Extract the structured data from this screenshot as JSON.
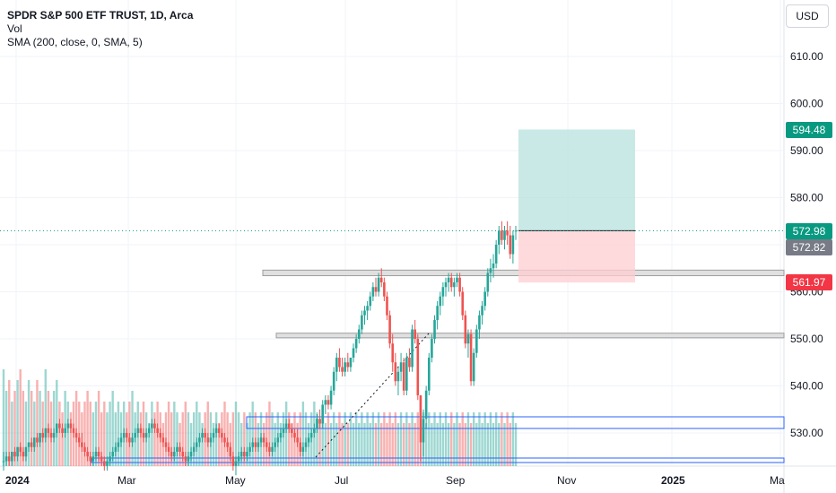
{
  "header": {
    "symbol": "SPDR S&P 500 ETF TRUST, 1D, Arca",
    "indicator_vol": "Vol",
    "indicator_sma": "SMA (200, close, 0, SMA, 5)"
  },
  "currency_button": "USD",
  "price_labels": {
    "target": "594.48",
    "last": "572.98",
    "prev_close": "572.82",
    "stop": "561.97"
  },
  "colors": {
    "up": "#26a69a",
    "down": "#ef5350",
    "target_zone": "#b2dfdb",
    "stop_zone": "#ffcdd2",
    "box_blue": "#2962ff",
    "zone_grey": "#e0e0e0",
    "last_price": "#089981",
    "prev_close_badge": "#787b86"
  },
  "chart_data": {
    "type": "candlestick",
    "ylim": [
      524,
      620
    ],
    "y_ticks": [
      "610.00",
      "600.00",
      "590.00",
      "580.00",
      "570.00",
      "560.00",
      "550.00",
      "540.00",
      "530.00"
    ],
    "x_ticks": [
      "2024",
      "Mar",
      "May",
      "Jul",
      "Sep",
      "Nov",
      "2025",
      "Ma"
    ],
    "candles_ohlc_daily_from_2024": [
      [
        524,
        526,
        522,
        524
      ],
      [
        524,
        526,
        523,
        525
      ],
      [
        525,
        526,
        523,
        524
      ],
      [
        524,
        526,
        523,
        526
      ],
      [
        526,
        527,
        524,
        525
      ],
      [
        525,
        527,
        524,
        527
      ],
      [
        527,
        528,
        525,
        526
      ],
      [
        526,
        527,
        524,
        525
      ],
      [
        525,
        527,
        524,
        527
      ],
      [
        527,
        528,
        526,
        528
      ],
      [
        528,
        529,
        526,
        527
      ],
      [
        527,
        529,
        526,
        529
      ],
      [
        529,
        530,
        527,
        528
      ],
      [
        528,
        530,
        527,
        530
      ],
      [
        530,
        531,
        528,
        529
      ],
      [
        529,
        531,
        528,
        531
      ],
      [
        531,
        532,
        529,
        530
      ],
      [
        530,
        531,
        528,
        529
      ],
      [
        529,
        531,
        528,
        530
      ],
      [
        530,
        532,
        529,
        532
      ],
      [
        532,
        533,
        530,
        531
      ],
      [
        531,
        532,
        529,
        530
      ],
      [
        530,
        532,
        529,
        531
      ],
      [
        531,
        533,
        530,
        532
      ],
      [
        532,
        533,
        530,
        531
      ],
      [
        531,
        532,
        529,
        530
      ],
      [
        530,
        531,
        528,
        529
      ],
      [
        529,
        530,
        527,
        528
      ],
      [
        528,
        530,
        526,
        527
      ],
      [
        527,
        528,
        525,
        526
      ],
      [
        526,
        527,
        524,
        525
      ],
      [
        525,
        526,
        523,
        524
      ],
      [
        524,
        526,
        523,
        525
      ],
      [
        525,
        527,
        524,
        526
      ],
      [
        526,
        527,
        524,
        525
      ],
      [
        525,
        526,
        523,
        524
      ],
      [
        524,
        525,
        522,
        523
      ],
      [
        523,
        525,
        522,
        524
      ],
      [
        524,
        526,
        523,
        525
      ],
      [
        525,
        527,
        524,
        526
      ],
      [
        526,
        528,
        525,
        527
      ],
      [
        527,
        529,
        526,
        528
      ],
      [
        528,
        530,
        527,
        529
      ],
      [
        529,
        531,
        528,
        530
      ],
      [
        530,
        531,
        528,
        529
      ],
      [
        529,
        530,
        527,
        528
      ],
      [
        528,
        530,
        527,
        529
      ],
      [
        529,
        531,
        528,
        530
      ],
      [
        530,
        532,
        529,
        531
      ],
      [
        531,
        532,
        529,
        530
      ],
      [
        530,
        531,
        528,
        529
      ],
      [
        529,
        531,
        528,
        530
      ],
      [
        530,
        532,
        529,
        531
      ],
      [
        531,
        533,
        530,
        532
      ],
      [
        532,
        533,
        530,
        531
      ],
      [
        531,
        532,
        529,
        530
      ],
      [
        530,
        531,
        528,
        529
      ],
      [
        529,
        530,
        527,
        528
      ],
      [
        528,
        529,
        526,
        527
      ],
      [
        527,
        528,
        525,
        526
      ],
      [
        526,
        527,
        524,
        525
      ],
      [
        525,
        527,
        524,
        526
      ],
      [
        526,
        528,
        525,
        527
      ],
      [
        527,
        528,
        525,
        526
      ],
      [
        526,
        527,
        524,
        525
      ],
      [
        525,
        526,
        523,
        524
      ],
      [
        524,
        526,
        523,
        525
      ],
      [
        525,
        527,
        524,
        526
      ],
      [
        526,
        528,
        525,
        527
      ],
      [
        527,
        529,
        526,
        528
      ],
      [
        528,
        530,
        527,
        529
      ],
      [
        529,
        531,
        528,
        530
      ],
      [
        530,
        531,
        528,
        529
      ],
      [
        529,
        530,
        527,
        528
      ],
      [
        528,
        530,
        527,
        529
      ],
      [
        529,
        531,
        528,
        530
      ],
      [
        530,
        532,
        529,
        531
      ],
      [
        531,
        532,
        529,
        530
      ],
      [
        530,
        531,
        528,
        529
      ],
      [
        529,
        530,
        527,
        528
      ],
      [
        528,
        529,
        526,
        527
      ],
      [
        527,
        528,
        524,
        525
      ],
      [
        525,
        526,
        522,
        523
      ],
      [
        523,
        525,
        521,
        524
      ],
      [
        524,
        526,
        523,
        525
      ],
      [
        525,
        527,
        524,
        526
      ],
      [
        526,
        527,
        524,
        525
      ],
      [
        525,
        527,
        524,
        526
      ],
      [
        526,
        528,
        525,
        527
      ],
      [
        527,
        529,
        526,
        528
      ],
      [
        528,
        529,
        526,
        527
      ],
      [
        527,
        529,
        526,
        528
      ],
      [
        528,
        530,
        527,
        529
      ],
      [
        529,
        530,
        527,
        528
      ],
      [
        528,
        529,
        526,
        527
      ],
      [
        527,
        528,
        525,
        526
      ],
      [
        526,
        528,
        525,
        527
      ],
      [
        527,
        529,
        526,
        528
      ],
      [
        528,
        530,
        527,
        529
      ],
      [
        529,
        531,
        528,
        530
      ],
      [
        530,
        532,
        529,
        531
      ],
      [
        531,
        533,
        530,
        532
      ],
      [
        532,
        533,
        530,
        531
      ],
      [
        531,
        532,
        529,
        530
      ],
      [
        530,
        531,
        528,
        529
      ],
      [
        529,
        531,
        527,
        528
      ],
      [
        528,
        529,
        525,
        526
      ],
      [
        526,
        528,
        525,
        527
      ],
      [
        527,
        529,
        526,
        528
      ],
      [
        528,
        530,
        527,
        529
      ],
      [
        529,
        531,
        528,
        530
      ],
      [
        530,
        532,
        529,
        531
      ],
      [
        531,
        534,
        530,
        533
      ],
      [
        533,
        535,
        531,
        532
      ],
      [
        532,
        537,
        531,
        536
      ],
      [
        536,
        538,
        534,
        537
      ],
      [
        537,
        538,
        535,
        536
      ],
      [
        536,
        540,
        535,
        539
      ],
      [
        539,
        544,
        538,
        543
      ],
      [
        543,
        547,
        541,
        546
      ],
      [
        546,
        548,
        543,
        544
      ],
      [
        544,
        546,
        542,
        543
      ],
      [
        543,
        546,
        542,
        545
      ],
      [
        545,
        547,
        543,
        544
      ],
      [
        544,
        546,
        543,
        546
      ],
      [
        546,
        549,
        545,
        548
      ],
      [
        548,
        551,
        547,
        550
      ],
      [
        550,
        553,
        549,
        552
      ],
      [
        552,
        556,
        551,
        555
      ],
      [
        555,
        557,
        553,
        556
      ],
      [
        556,
        558,
        554,
        557
      ],
      [
        557,
        560,
        556,
        559
      ],
      [
        559,
        562,
        558,
        561
      ],
      [
        561,
        563,
        559,
        560
      ],
      [
        560,
        564,
        559,
        563
      ],
      [
        563,
        565,
        561,
        562
      ],
      [
        562,
        563,
        558,
        559
      ],
      [
        559,
        560,
        554,
        555
      ],
      [
        555,
        556,
        548,
        549
      ],
      [
        549,
        551,
        543,
        545
      ],
      [
        545,
        547,
        540,
        541
      ],
      [
        541,
        544,
        538,
        543
      ],
      [
        543,
        547,
        541,
        545
      ],
      [
        545,
        546,
        538,
        539
      ],
      [
        539,
        547,
        538,
        546
      ],
      [
        546,
        548,
        543,
        544
      ],
      [
        544,
        553,
        543,
        552
      ],
      [
        552,
        554,
        549,
        550
      ],
      [
        550,
        551,
        537,
        538
      ],
      [
        538,
        534,
        524,
        528
      ],
      [
        528,
        535,
        525,
        533
      ],
      [
        533,
        540,
        531,
        539
      ],
      [
        539,
        547,
        538,
        546
      ],
      [
        546,
        551,
        545,
        550
      ],
      [
        550,
        555,
        549,
        554
      ],
      [
        554,
        558,
        552,
        557
      ],
      [
        557,
        560,
        555,
        559
      ],
      [
        559,
        562,
        557,
        561
      ],
      [
        561,
        563,
        559,
        562
      ],
      [
        562,
        564,
        560,
        563
      ],
      [
        563,
        564,
        560,
        561
      ],
      [
        561,
        563,
        559,
        562
      ],
      [
        562,
        564,
        561,
        563
      ],
      [
        563,
        564,
        559,
        560
      ],
      [
        560,
        561,
        554,
        555
      ],
      [
        555,
        556,
        548,
        549
      ],
      [
        549,
        552,
        546,
        551
      ],
      [
        551,
        552,
        540,
        541
      ],
      [
        541,
        548,
        540,
        547
      ],
      [
        547,
        553,
        546,
        552
      ],
      [
        552,
        556,
        550,
        555
      ],
      [
        555,
        558,
        553,
        557
      ],
      [
        557,
        561,
        556,
        560
      ],
      [
        560,
        565,
        559,
        564
      ],
      [
        564,
        567,
        562,
        565
      ],
      [
        565,
        568,
        563,
        566
      ],
      [
        566,
        571,
        565,
        570
      ],
      [
        570,
        574,
        568,
        573
      ],
      [
        573,
        575,
        570,
        571
      ],
      [
        571,
        574,
        569,
        573
      ],
      [
        573,
        575,
        570,
        572
      ],
      [
        572,
        574,
        567,
        568
      ],
      [
        568,
        573,
        566,
        572
      ],
      [
        572.8,
        574,
        571,
        572.98
      ]
    ],
    "volume_relative": [
      0.9,
      0.7,
      0.8,
      0.6,
      0.7,
      0.8,
      0.9,
      0.7,
      0.6,
      0.8,
      0.7,
      0.6,
      0.8,
      0.7,
      0.6,
      0.9,
      0.7,
      0.6,
      0.7,
      0.8,
      0.6,
      0.5,
      0.7,
      0.6,
      0.5,
      0.6,
      0.7,
      0.6,
      0.5,
      0.6,
      0.7,
      0.6,
      0.5,
      0.6,
      0.7,
      0.5,
      0.6,
      0.5,
      0.6,
      0.7,
      0.5,
      0.6,
      0.5,
      0.6,
      0.5,
      0.6,
      0.7,
      0.5,
      0.6,
      0.5,
      0.6,
      0.5,
      0.4,
      0.6,
      0.5,
      0.6,
      0.5,
      0.4,
      0.5,
      0.6,
      0.5,
      0.6,
      0.5,
      0.4,
      0.5,
      0.6,
      0.5,
      0.4,
      0.5,
      0.6,
      0.5,
      0.4,
      0.5,
      0.6,
      0.5,
      0.4,
      0.5,
      0.4,
      0.5,
      0.6,
      0.5,
      0.4,
      0.5,
      0.6,
      0.5,
      0.4,
      0.5,
      0.4,
      0.5,
      0.6,
      0.5,
      0.4,
      0.5,
      0.4,
      0.5,
      0.6,
      0.5,
      0.4,
      0.5,
      0.4,
      0.5,
      0.6,
      0.5,
      0.4,
      0.5,
      0.4,
      0.5,
      0.6,
      0.5,
      0.4,
      0.5,
      0.6,
      0.5,
      0.4,
      0.5,
      0.4,
      0.5,
      0.4,
      0.5,
      0.4,
      0.5,
      0.4,
      0.5,
      0.4,
      0.5,
      0.4,
      0.5,
      0.4,
      0.5,
      0.4,
      0.5,
      0.4,
      0.5,
      0.4,
      0.5,
      0.4,
      0.5,
      0.4,
      0.5,
      0.4,
      0.5,
      0.4,
      0.5,
      0.4,
      0.5,
      0.4,
      0.5,
      0.4,
      0.5,
      0.4,
      0.5,
      0.4,
      0.5,
      0.4,
      0.5,
      0.4,
      0.5,
      0.4,
      0.5,
      0.4,
      0.5,
      0.4,
      0.5,
      0.4,
      0.5,
      0.4,
      0.5,
      0.4,
      0.5,
      0.4,
      0.5,
      0.4,
      0.5,
      0.4,
      0.5,
      0.4,
      0.5,
      0.4,
      0.5,
      0.4,
      0.5,
      0.4,
      0.5,
      0.4,
      0.5,
      0.4
    ],
    "position_tool": {
      "entry": 572.98,
      "target": 594.48,
      "stop": 561.97
    },
    "horizontal_zones": [
      [
        563.8,
        564.6
      ],
      [
        550.6,
        551.2
      ]
    ],
    "sma_points": [
      [
        530,
        530.2
      ],
      [
        534,
        530.8
      ]
    ],
    "grid": true
  }
}
